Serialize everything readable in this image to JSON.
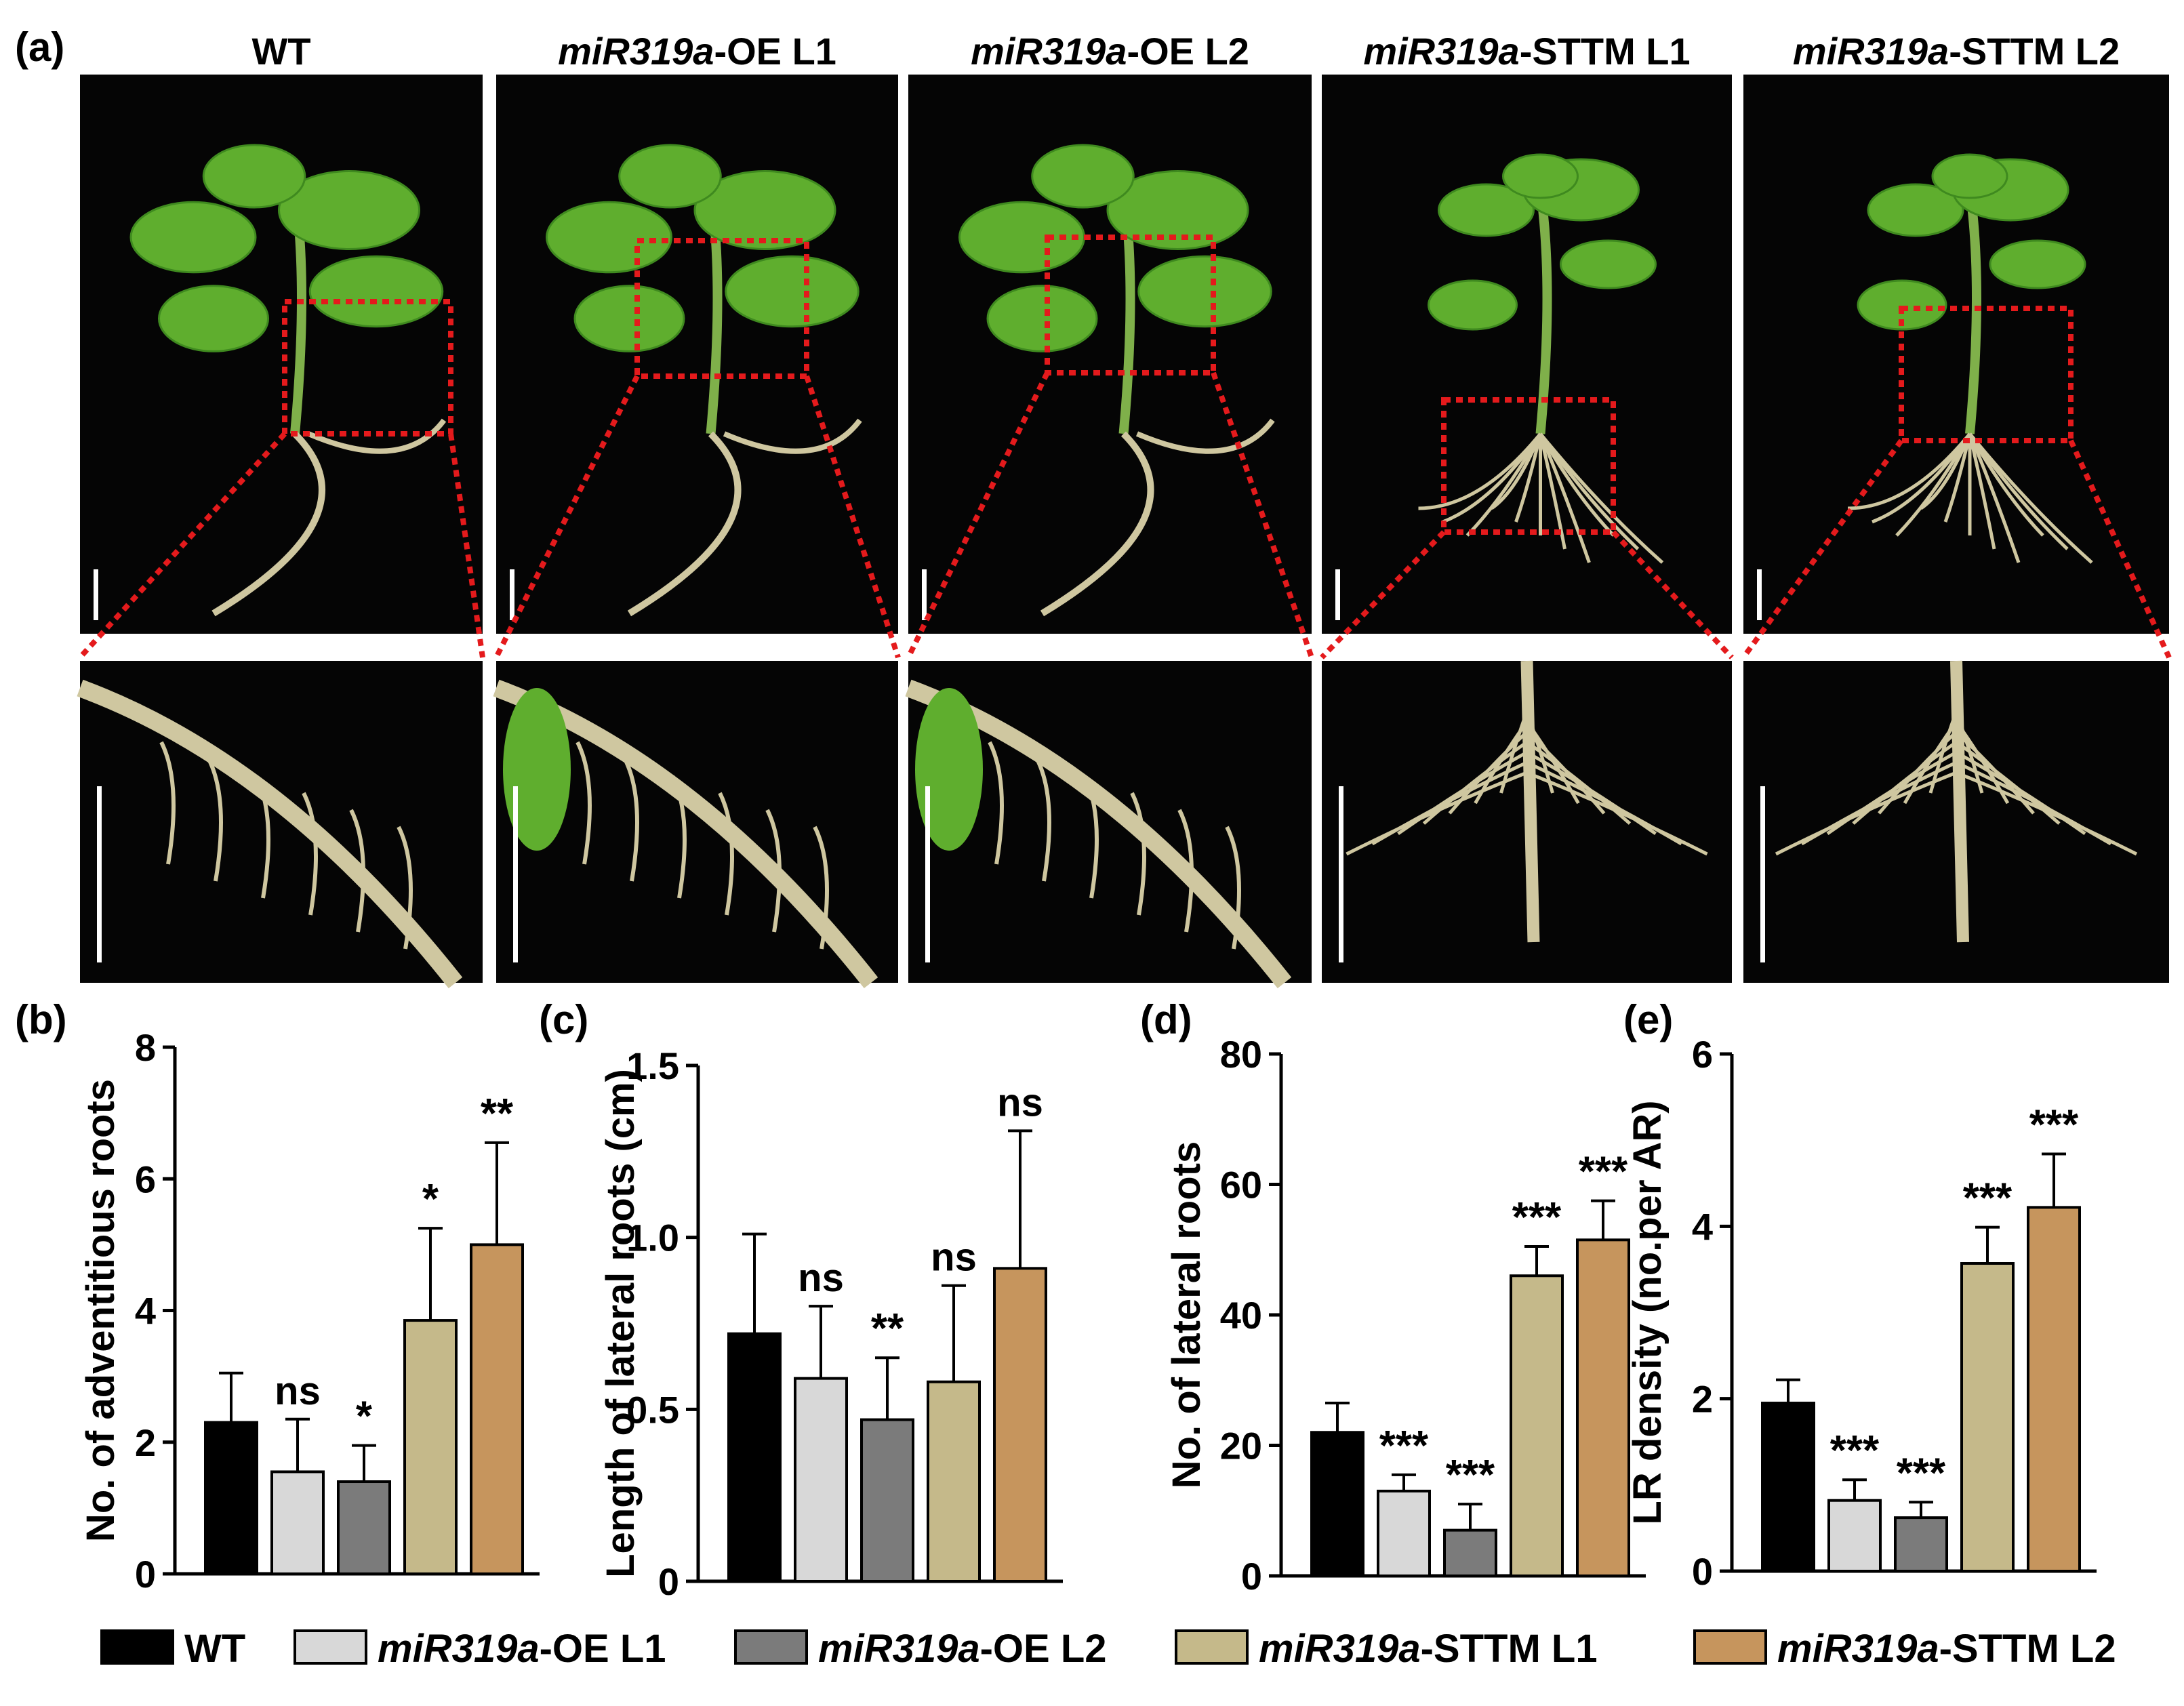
{
  "panel_letters": [
    "(a)",
    "(b)",
    "(c)",
    "(d)",
    "(e)"
  ],
  "groups": [
    {
      "italic": "",
      "rest": "WT"
    },
    {
      "italic": "miR319a",
      "rest": "-OE L1"
    },
    {
      "italic": "miR319a",
      "rest": "-OE L2"
    },
    {
      "italic": "miR319a",
      "rest": "-STTM L1"
    },
    {
      "italic": "miR319a",
      "rest": "-STTM L2"
    }
  ],
  "colors": {
    "WT": "#000000",
    "OE_L1": "#d8d8d8",
    "OE_L2": "#7b7b7b",
    "STTM_L1": "#c5b98a",
    "STTM_L2": "#c6955d",
    "zoom_box": "#e41a1c",
    "photo_bg": "#050505",
    "plant_leaf": "#5fae2e",
    "plant_root": "#cfc7a0"
  },
  "legend": [
    {
      "italic": "",
      "rest": "WT",
      "color": "#000000"
    },
    {
      "italic": "miR319a",
      "rest": "-OE L1",
      "color": "#d8d8d8"
    },
    {
      "italic": "miR319a",
      "rest": "-OE L2",
      "color": "#7b7b7b"
    },
    {
      "italic": "miR319a",
      "rest": "-STTM L1",
      "color": "#c5b98a"
    },
    {
      "italic": "miR319a",
      "rest": "-STTM L2",
      "color": "#c6955d"
    }
  ],
  "chart_data": [
    {
      "id": "b",
      "type": "bar",
      "ylabel": "No. of adventitious roots",
      "ylim": [
        0,
        8
      ],
      "yticks": [
        0,
        2,
        4,
        6,
        8
      ],
      "series": [
        {
          "name": "WT",
          "value": 2.3,
          "error": 0.75,
          "sig": ""
        },
        {
          "name": "miR319a-OE L1",
          "value": 1.55,
          "error": 0.8,
          "sig": "ns"
        },
        {
          "name": "miR319a-OE L2",
          "value": 1.4,
          "error": 0.55,
          "sig": "*"
        },
        {
          "name": "miR319a-STTM L1",
          "value": 3.85,
          "error": 1.4,
          "sig": "*"
        },
        {
          "name": "miR319a-STTM L2",
          "value": 5.0,
          "error": 1.55,
          "sig": "**"
        }
      ]
    },
    {
      "id": "c",
      "type": "bar",
      "ylabel": "Length of lateral roots (cm)",
      "ylim": [
        0,
        1.5
      ],
      "yticks": [
        "0",
        "0.5",
        "1.0",
        "1.5"
      ],
      "series": [
        {
          "name": "WT",
          "value": 0.72,
          "error": 0.29,
          "sig": ""
        },
        {
          "name": "miR319a-OE L1",
          "value": 0.59,
          "error": 0.21,
          "sig": "ns"
        },
        {
          "name": "miR319a-OE L2",
          "value": 0.47,
          "error": 0.18,
          "sig": "**"
        },
        {
          "name": "miR319a-STTM L1",
          "value": 0.58,
          "error": 0.28,
          "sig": "ns"
        },
        {
          "name": "miR319a-STTM L2",
          "value": 0.91,
          "error": 0.4,
          "sig": "ns"
        }
      ]
    },
    {
      "id": "d",
      "type": "bar",
      "ylabel": "No. of lateral roots",
      "ylim": [
        0,
        80
      ],
      "yticks": [
        0,
        20,
        40,
        60,
        80
      ],
      "series": [
        {
          "name": "WT",
          "value": 22,
          "error": 4.5,
          "sig": ""
        },
        {
          "name": "miR319a-OE L1",
          "value": 13,
          "error": 2.5,
          "sig": "***"
        },
        {
          "name": "miR319a-OE L2",
          "value": 7,
          "error": 4,
          "sig": "***"
        },
        {
          "name": "miR319a-STTM L1",
          "value": 46,
          "error": 4.5,
          "sig": "***"
        },
        {
          "name": "miR319a-STTM L2",
          "value": 51.5,
          "error": 6,
          "sig": "***"
        }
      ]
    },
    {
      "id": "e",
      "type": "bar",
      "ylabel": "LR density (no.per AR)",
      "ylim": [
        0,
        6
      ],
      "yticks": [
        0,
        2,
        4,
        6
      ],
      "series": [
        {
          "name": "WT",
          "value": 1.95,
          "error": 0.27,
          "sig": ""
        },
        {
          "name": "miR319a-OE L1",
          "value": 0.82,
          "error": 0.24,
          "sig": "***"
        },
        {
          "name": "miR319a-OE L2",
          "value": 0.62,
          "error": 0.18,
          "sig": "***"
        },
        {
          "name": "miR319a-STTM L1",
          "value": 3.57,
          "error": 0.42,
          "sig": "***"
        },
        {
          "name": "miR319a-STTM L2",
          "value": 4.22,
          "error": 0.62,
          "sig": "***"
        }
      ]
    }
  ]
}
